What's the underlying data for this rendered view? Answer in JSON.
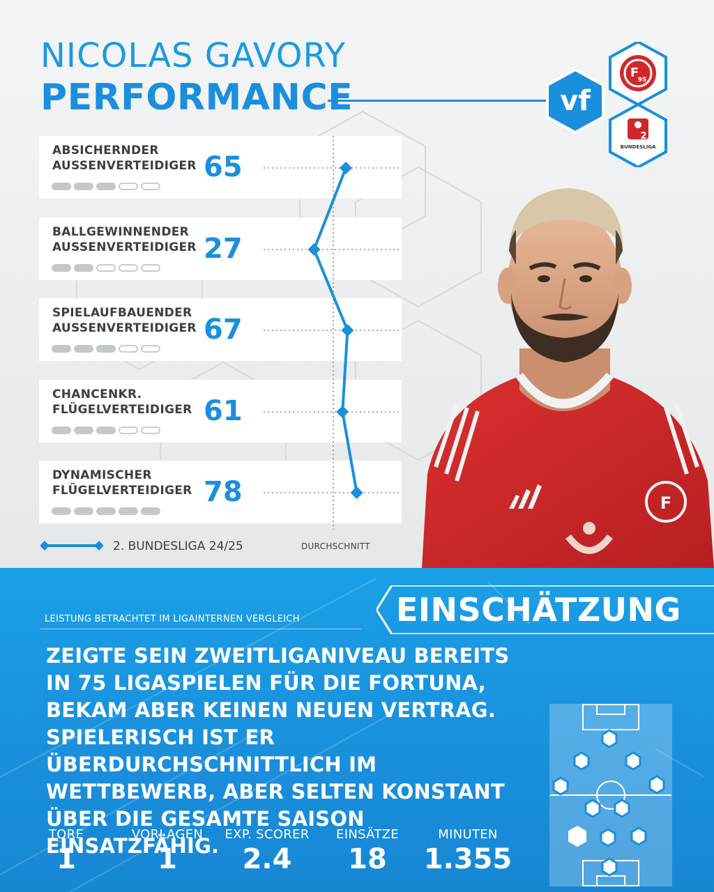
{
  "header": {
    "player_name": "NICOLAS GAVORY",
    "subtitle": "PERFORMANCE"
  },
  "logos": {
    "brand": "vf",
    "club_badge_text": "95",
    "league_badge_text": "BUNDESLIGA",
    "league_badge_number": "2"
  },
  "roles": [
    {
      "line1": "ABSICHERNDER",
      "line2": "AUSSENVERTEIDIGER",
      "value": "65",
      "rating": 65,
      "pills_filled": 3
    },
    {
      "line1": "BALLGEWINNENDER",
      "line2": "AUSSENVERTEIDIGER",
      "value": "27",
      "rating": 27,
      "pills_filled": 2
    },
    {
      "line1": "SPIELAUFBAUENDER",
      "line2": "AUSSENVERTEIDIGER",
      "value": "67",
      "rating": 67,
      "pills_filled": 3
    },
    {
      "line1": "CHANCENKR.",
      "line2": "FLÜGELVERTEIDIGER",
      "value": "61",
      "rating": 61,
      "pills_filled": 3
    },
    {
      "line1": "DYNAMISCHER",
      "line2": "FLÜGELVERTEIDIGER",
      "value": "78",
      "rating": 78,
      "pills_filled": 5
    }
  ],
  "legend": {
    "series_label": "2. BUNDESLIGA 24/25",
    "average_label": "DURCHSCHNITT"
  },
  "assessment": {
    "heading": "EINSCHÄTZUNG",
    "comparison_note": "LEISTUNG BETRACHTET IM LIGAINTERNEN VERGLEICH",
    "text": "ZEIGTE SEIN ZWEITLIGANIVEAU BEREITS IN 75 LIGASPIELEN FÜR DIE FORTUNA, BEKAM ABER KEINEN NEUEN VERTRAG. SPIELERISCH IST ER ÜBERDURCHSCHNITTLICH IM WETTBEWERB, ABER SELTEN KONSTANT ÜBER DIE GESAMTE SAISON EINSATZFÄHIG."
  },
  "stats": [
    {
      "label": "TORE",
      "value": "1"
    },
    {
      "label": "VORLAGEN",
      "value": "1"
    },
    {
      "label": "EXP. SCORER",
      "value": "2.4"
    },
    {
      "label": "EINSÄTZE",
      "value": "18"
    },
    {
      "label": "MINUTEN",
      "value": "1.355"
    }
  ],
  "colors": {
    "accent": "#1a8fdc",
    "accent_light": "#1aa0e6",
    "card_bg": "#ffffff",
    "text_dark": "#3b3f44",
    "jersey_red": "#d0282a"
  },
  "icons": {
    "player_photo": "player-portrait",
    "formation": "formation-pitch-icon"
  }
}
